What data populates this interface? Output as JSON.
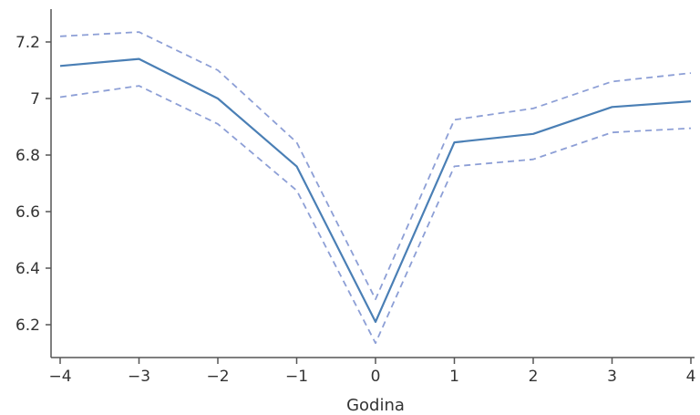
{
  "chart_data": {
    "type": "line",
    "title": "",
    "xlabel": "Godina",
    "ylabel": "",
    "x": [
      -4,
      -3,
      -2,
      -1,
      0,
      1,
      2,
      3,
      4
    ],
    "xlim": [
      -4,
      4
    ],
    "ylim": [
      6.1,
      7.3
    ],
    "x_ticks": [
      "−4",
      "−3",
      "−2",
      "−1",
      "0",
      "1",
      "2",
      "3",
      "4"
    ],
    "y_ticks": [
      "6.2",
      "6.4",
      "6.6",
      "6.8",
      "7",
      "7.2"
    ],
    "grid": false,
    "legend": "none",
    "series": [
      {
        "role": "estimate",
        "values": [
          7.115,
          7.14,
          7.0,
          6.76,
          6.21,
          6.845,
          6.875,
          6.97,
          6.99
        ],
        "color": "#4a7fb5",
        "style": "solid"
      },
      {
        "role": "upper-bound",
        "values": [
          7.22,
          7.235,
          7.1,
          6.845,
          6.29,
          6.925,
          6.965,
          7.06,
          7.09
        ],
        "color": "#8d9fd6",
        "style": "dashed"
      },
      {
        "role": "lower-bound",
        "values": [
          7.005,
          7.045,
          6.91,
          6.675,
          6.135,
          6.76,
          6.785,
          6.88,
          6.895
        ],
        "color": "#8d9fd6",
        "style": "dashed"
      }
    ]
  }
}
